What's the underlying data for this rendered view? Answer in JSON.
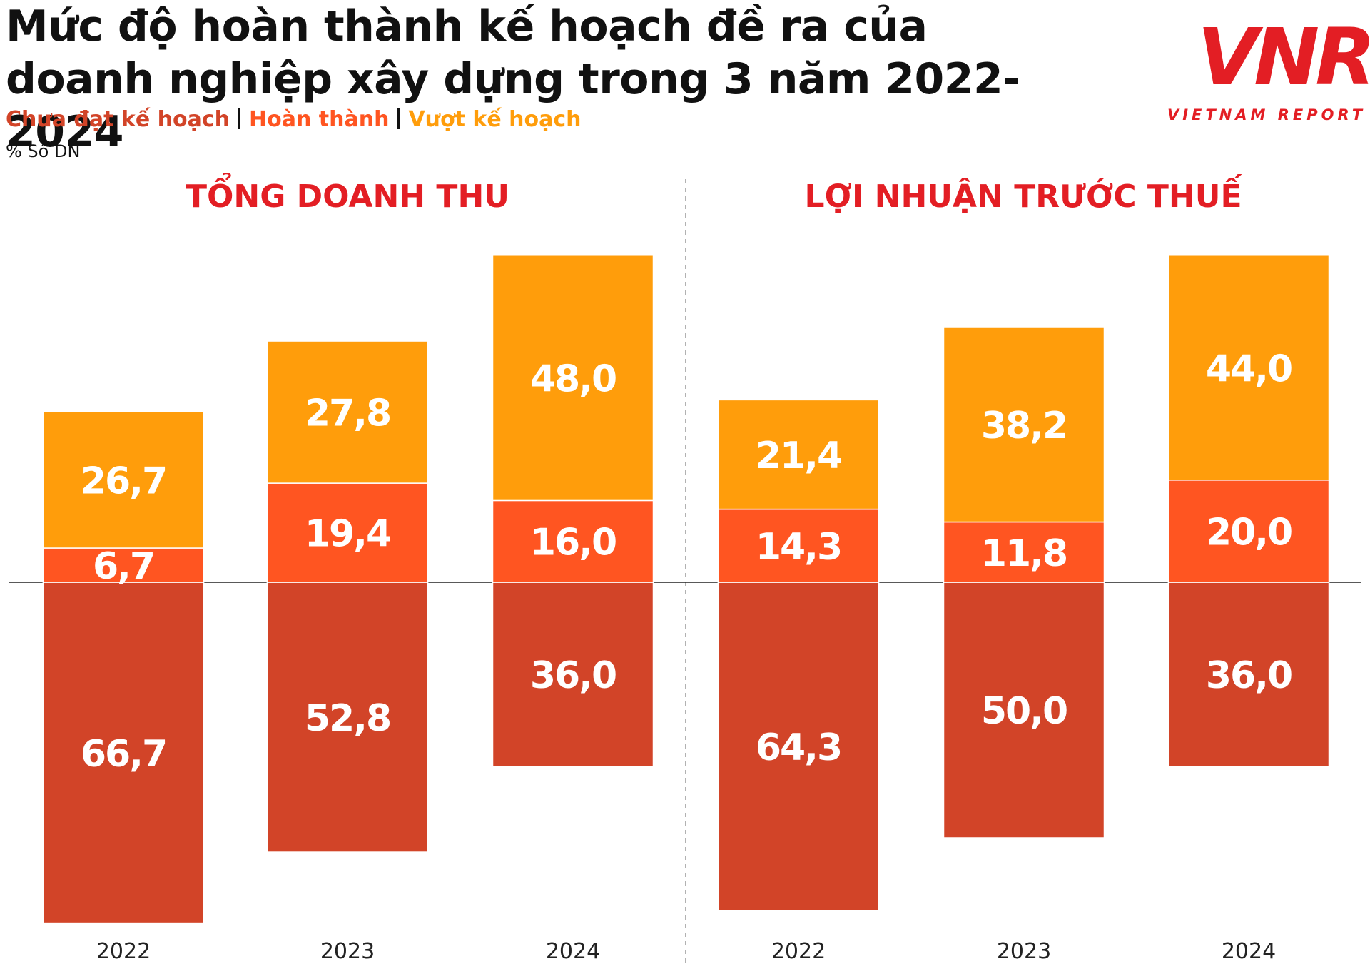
{
  "title": "Mức độ hoàn thành kế hoạch đề ra của doanh nghiệp xây dựng trong 3 năm 2022-2024",
  "unit": "% Số DN",
  "logo": {
    "mark": "VNR",
    "tagline": "VIETNAM REPORT"
  },
  "chart_data": [
    {
      "type": "bar",
      "stacked": true,
      "title": "TỔNG DOANH THU",
      "categories": [
        "2022",
        "2023",
        "2024"
      ],
      "series": [
        {
          "name": "Chưa đạt kế hoạch",
          "color": "#d24428",
          "values": [
            -66.7,
            -52.8,
            -36.0
          ],
          "value_labels": [
            "66,7",
            "52,8",
            "36,0"
          ]
        },
        {
          "name": "Hoàn thành",
          "color": "#ff5521",
          "values": [
            6.7,
            19.4,
            16.0
          ],
          "value_labels": [
            "6,7",
            "19,4",
            "16,0"
          ]
        },
        {
          "name": "Vượt kế hoạch",
          "color": "#ff9d0b",
          "values": [
            26.7,
            27.8,
            48.0
          ],
          "value_labels": [
            "26,7",
            "27,8",
            "48,0"
          ]
        }
      ]
    },
    {
      "type": "bar",
      "stacked": true,
      "title": "LỢI NHUẬN TRƯỚC THUẾ",
      "categories": [
        "2022",
        "2023",
        "2024"
      ],
      "series": [
        {
          "name": "Chưa đạt kế hoạch",
          "color": "#d24428",
          "values": [
            -64.3,
            -50.0,
            -36.0
          ],
          "value_labels": [
            "64,3",
            "50,0",
            "36,0"
          ]
        },
        {
          "name": "Hoàn thành",
          "color": "#ff5521",
          "values": [
            14.3,
            11.8,
            20.0
          ],
          "value_labels": [
            "14,3",
            "11,8",
            "20,0"
          ]
        },
        {
          "name": "Vượt kế hoạch",
          "color": "#ff9d0b",
          "values": [
            21.4,
            38.2,
            44.0
          ],
          "value_labels": [
            "21,4",
            "38,2",
            "44,0"
          ]
        }
      ]
    }
  ]
}
